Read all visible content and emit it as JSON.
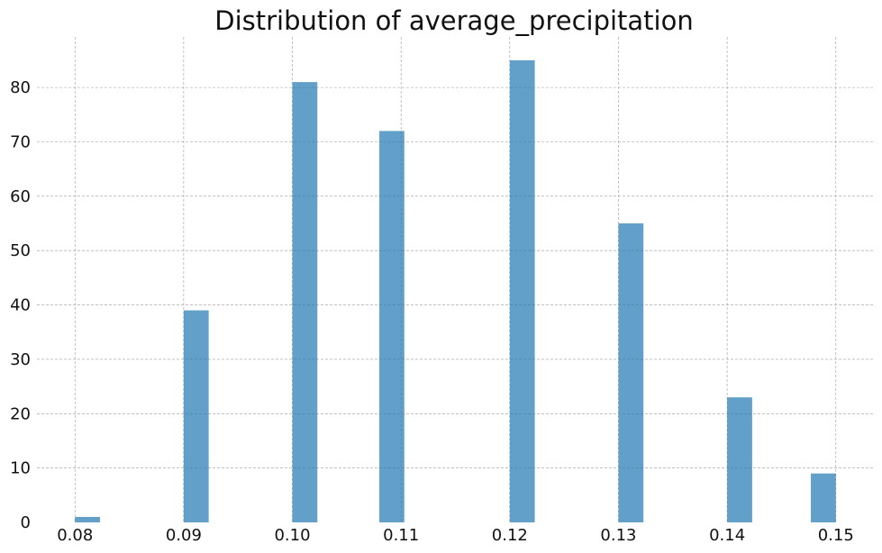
{
  "chart_data": {
    "type": "bar",
    "title": "Distribution of average_precipitation",
    "xlabel": "",
    "ylabel": "",
    "xlim": [
      0.0765,
      0.1535
    ],
    "ylim": [
      0,
      89.3
    ],
    "x_ticks": [
      0.08,
      0.09,
      0.1,
      0.11,
      0.12,
      0.13,
      0.14,
      0.15
    ],
    "x_tick_labels": [
      "0.08",
      "0.09",
      "0.10",
      "0.11",
      "0.12",
      "0.13",
      "0.14",
      "0.15"
    ],
    "y_ticks": [
      0,
      10,
      20,
      30,
      40,
      50,
      60,
      70,
      80
    ],
    "y_tick_labels": [
      "0",
      "10",
      "20",
      "30",
      "40",
      "50",
      "60",
      "70",
      "80"
    ],
    "bin_width": 0.0023,
    "bins": [
      {
        "x_start": 0.08,
        "count": 1
      },
      {
        "x_start": 0.09,
        "count": 39
      },
      {
        "x_start": 0.1,
        "count": 81
      },
      {
        "x_start": 0.108,
        "count": 72
      },
      {
        "x_start": 0.12,
        "count": 85
      },
      {
        "x_start": 0.13,
        "count": 55
      },
      {
        "x_start": 0.14,
        "count": 23
      },
      {
        "x_start": 0.1477,
        "count": 9
      }
    ],
    "grid": true,
    "color": "#1f77b4",
    "bar_opacity": 0.7,
    "legend": "none"
  }
}
